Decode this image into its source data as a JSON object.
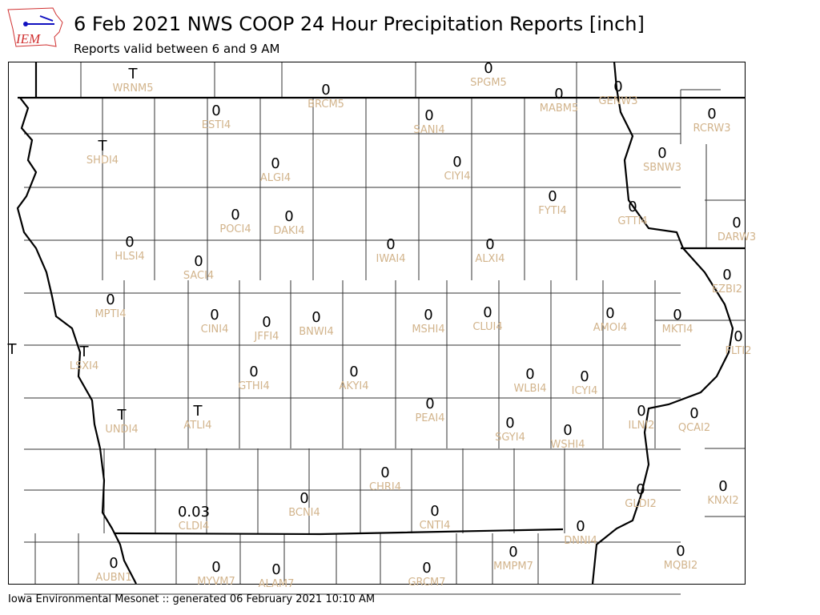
{
  "header": {
    "title": "6 Feb 2021 NWS COOP 24 Hour Precipitation Reports [inch]",
    "subtitle": "Reports valid between 6 and 9 AM",
    "logo_text": "IEM"
  },
  "footer": "Iowa Environmental Mesonet :: generated 06 February 2021 10:10 AM",
  "colors": {
    "value_text": "#000000",
    "station_label": "#d2b48c",
    "logo_red": "#d03030",
    "logo_blue": "#1010c0"
  },
  "stations": [
    {
      "id": "WRNM5",
      "value": "T"
    },
    {
      "id": "BRCM5",
      "value": "0"
    },
    {
      "id": "SPGM5",
      "value": "0"
    },
    {
      "id": "MABM5",
      "value": "0"
    },
    {
      "id": "GENW3",
      "value": "0"
    },
    {
      "id": "RCRW3",
      "value": "0"
    },
    {
      "id": "ESTI4",
      "value": "0"
    },
    {
      "id": "SANI4",
      "value": "0"
    },
    {
      "id": "SHDI4",
      "value": "T"
    },
    {
      "id": "ALGI4",
      "value": "0"
    },
    {
      "id": "CIYI4",
      "value": "0"
    },
    {
      "id": "SBNW3",
      "value": "0"
    },
    {
      "id": "FYTI4",
      "value": "0"
    },
    {
      "id": "GTTI4",
      "value": "0"
    },
    {
      "id": "DARW3",
      "value": "0"
    },
    {
      "id": "POCI4",
      "value": "0"
    },
    {
      "id": "DAKI4",
      "value": "0"
    },
    {
      "id": "HLSI4",
      "value": "0"
    },
    {
      "id": "IWAI4",
      "value": "0"
    },
    {
      "id": "ALXI4",
      "value": "0"
    },
    {
      "id": "SACI4",
      "value": "0"
    },
    {
      "id": "EZBI2",
      "value": "0"
    },
    {
      "id": "MPTI4",
      "value": "0"
    },
    {
      "id": "CINI4",
      "value": "0"
    },
    {
      "id": "JFFI4",
      "value": "0"
    },
    {
      "id": "BNWI4",
      "value": "0"
    },
    {
      "id": "MSHI4",
      "value": "0"
    },
    {
      "id": "CLUI4",
      "value": "0"
    },
    {
      "id": "AMOI4",
      "value": "0"
    },
    {
      "id": "MKTI4",
      "value": "0"
    },
    {
      "id": "FLTI2",
      "value": "0"
    },
    {
      "id": "",
      "value": "T"
    },
    {
      "id": "LSXI4",
      "value": "T"
    },
    {
      "id": "GTHI4",
      "value": "0"
    },
    {
      "id": "AKYI4",
      "value": "0"
    },
    {
      "id": "WLBI4",
      "value": "0"
    },
    {
      "id": "ICYI4",
      "value": "0"
    },
    {
      "id": "PEAI4",
      "value": "0"
    },
    {
      "id": "UNDI4",
      "value": "T"
    },
    {
      "id": "ATLI4",
      "value": "T"
    },
    {
      "id": "ILNI2",
      "value": "0"
    },
    {
      "id": "QCAI2",
      "value": "0"
    },
    {
      "id": "SGYI4",
      "value": "0"
    },
    {
      "id": "WSHI4",
      "value": "0"
    },
    {
      "id": "CHRI4",
      "value": "0"
    },
    {
      "id": "KNXI2",
      "value": "0"
    },
    {
      "id": "GLDI2",
      "value": "0"
    },
    {
      "id": "BCNI4",
      "value": "0"
    },
    {
      "id": "CLDI4",
      "value": "0.03"
    },
    {
      "id": "CNTI4",
      "value": "0"
    },
    {
      "id": "DNNI4",
      "value": "0"
    },
    {
      "id": "MMPM7",
      "value": "0"
    },
    {
      "id": "MQBI2",
      "value": "0"
    },
    {
      "id": "AUBN1",
      "value": "0"
    },
    {
      "id": "MYVM7",
      "value": "0"
    },
    {
      "id": "GRCM7",
      "value": "0"
    },
    {
      "id": "ALAM7",
      "value": "0"
    }
  ]
}
